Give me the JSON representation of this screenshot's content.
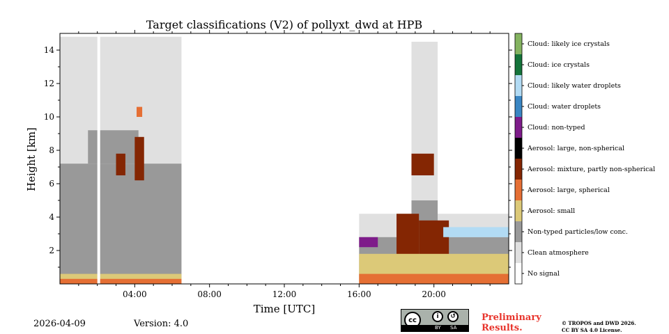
{
  "chart_data": {
    "type": "heatmap",
    "title": "Target classifications (V2) of pollyxt_dwd at HPB",
    "xlabel": "Time [UTC]",
    "ylabel": "Height [km]",
    "xlim_hours": [
      0,
      24
    ],
    "ylim_km": [
      0,
      15
    ],
    "x_ticks": [
      {
        "value": 4,
        "label": "04:00"
      },
      {
        "value": 8,
        "label": "08:00"
      },
      {
        "value": 12,
        "label": "12:00"
      },
      {
        "value": 16,
        "label": "16:00"
      },
      {
        "value": 20,
        "label": "20:00"
      }
    ],
    "y_ticks": [
      {
        "value": 2,
        "label": "2"
      },
      {
        "value": 4,
        "label": "4"
      },
      {
        "value": 6,
        "label": "6"
      },
      {
        "value": 8,
        "label": "8"
      },
      {
        "value": 10,
        "label": "10"
      },
      {
        "value": 12,
        "label": "12"
      },
      {
        "value": 14,
        "label": "14"
      }
    ],
    "classes": [
      {
        "label": "No signal",
        "color": "#ffffff"
      },
      {
        "label": "Clean atmosphere",
        "color": "#e0e0e0"
      },
      {
        "label": "Non-typed particles/low conc.",
        "color": "#999999"
      },
      {
        "label": "Aerosol: small",
        "color": "#dcc978"
      },
      {
        "label": "Aerosol: large, spherical",
        "color": "#e56f34"
      },
      {
        "label": "Aerosol: mixture, partly non-spherical",
        "color": "#842603"
      },
      {
        "label": "Aerosol: large, non-spherical",
        "color": "#000000"
      },
      {
        "label": "Cloud: non-typed",
        "color": "#7e1c8a"
      },
      {
        "label": "Cloud: water droplets",
        "color": "#3a86c3"
      },
      {
        "label": "Cloud: likely water droplets",
        "color": "#b2dbf4"
      },
      {
        "label": "Cloud: ice crystals",
        "color": "#14733a"
      },
      {
        "label": "Cloud: likely ice crystals",
        "color": "#84b360"
      }
    ],
    "regions": [
      {
        "t0": 0,
        "t1": 6.5,
        "h0": 0,
        "h1": 14.8,
        "cls": 1
      },
      {
        "t0": 0,
        "t1": 6.5,
        "h0": 0,
        "h1": 7.2,
        "cls": 2
      },
      {
        "t0": 1.5,
        "t1": 4.2,
        "h0": 7.2,
        "h1": 9.2,
        "cls": 2
      },
      {
        "t0": 0,
        "t1": 6.5,
        "h0": 0,
        "h1": 0.6,
        "cls": 3
      },
      {
        "t0": 0,
        "t1": 6.5,
        "h0": 0,
        "h1": 0.3,
        "cls": 4
      },
      {
        "t0": 3.0,
        "t1": 3.5,
        "h0": 6.5,
        "h1": 7.8,
        "cls": 5
      },
      {
        "t0": 4.0,
        "t1": 4.5,
        "h0": 6.2,
        "h1": 8.8,
        "cls": 5
      },
      {
        "t0": 4.1,
        "t1": 4.4,
        "h0": 10.0,
        "h1": 10.6,
        "cls": 4
      },
      {
        "t0": 16,
        "t1": 24,
        "h0": 0,
        "h1": 4.2,
        "cls": 1
      },
      {
        "t0": 18.8,
        "t1": 20.2,
        "h0": 4.2,
        "h1": 14.5,
        "cls": 1
      },
      {
        "t0": 16,
        "t1": 24,
        "h0": 0,
        "h1": 2.8,
        "cls": 2
      },
      {
        "t0": 18.8,
        "t1": 20.2,
        "h0": 2.8,
        "h1": 5.0,
        "cls": 2
      },
      {
        "t0": 18.0,
        "t1": 19.2,
        "h0": 1.5,
        "h1": 4.2,
        "cls": 5
      },
      {
        "t0": 19.2,
        "t1": 20.8,
        "h0": 1.5,
        "h1": 3.8,
        "cls": 5
      },
      {
        "t0": 18.8,
        "t1": 20.0,
        "h0": 6.5,
        "h1": 7.8,
        "cls": 5
      },
      {
        "t0": 20.5,
        "t1": 24,
        "h0": 2.8,
        "h1": 3.4,
        "cls": 9
      },
      {
        "t0": 16,
        "t1": 24,
        "h0": 0,
        "h1": 1.8,
        "cls": 3
      },
      {
        "t0": 16,
        "t1": 24,
        "h0": 0,
        "h1": 0.6,
        "cls": 4
      },
      {
        "t0": 16.0,
        "t1": 17.0,
        "h0": 2.2,
        "h1": 2.8,
        "cls": 7
      }
    ],
    "data_gaps": [
      {
        "t0": 2.0,
        "t1": 2.15
      }
    ]
  },
  "footer": {
    "date": "2026-04-09",
    "version": "Version: 4.0",
    "license_badge": {
      "cc": "cc",
      "by": "BY",
      "sa": "SA"
    },
    "preliminary": [
      "Preliminary",
      "Results."
    ],
    "copyright": [
      "© TROPOS and DWD 2026.",
      "CC BY SA 4.0 License."
    ]
  }
}
